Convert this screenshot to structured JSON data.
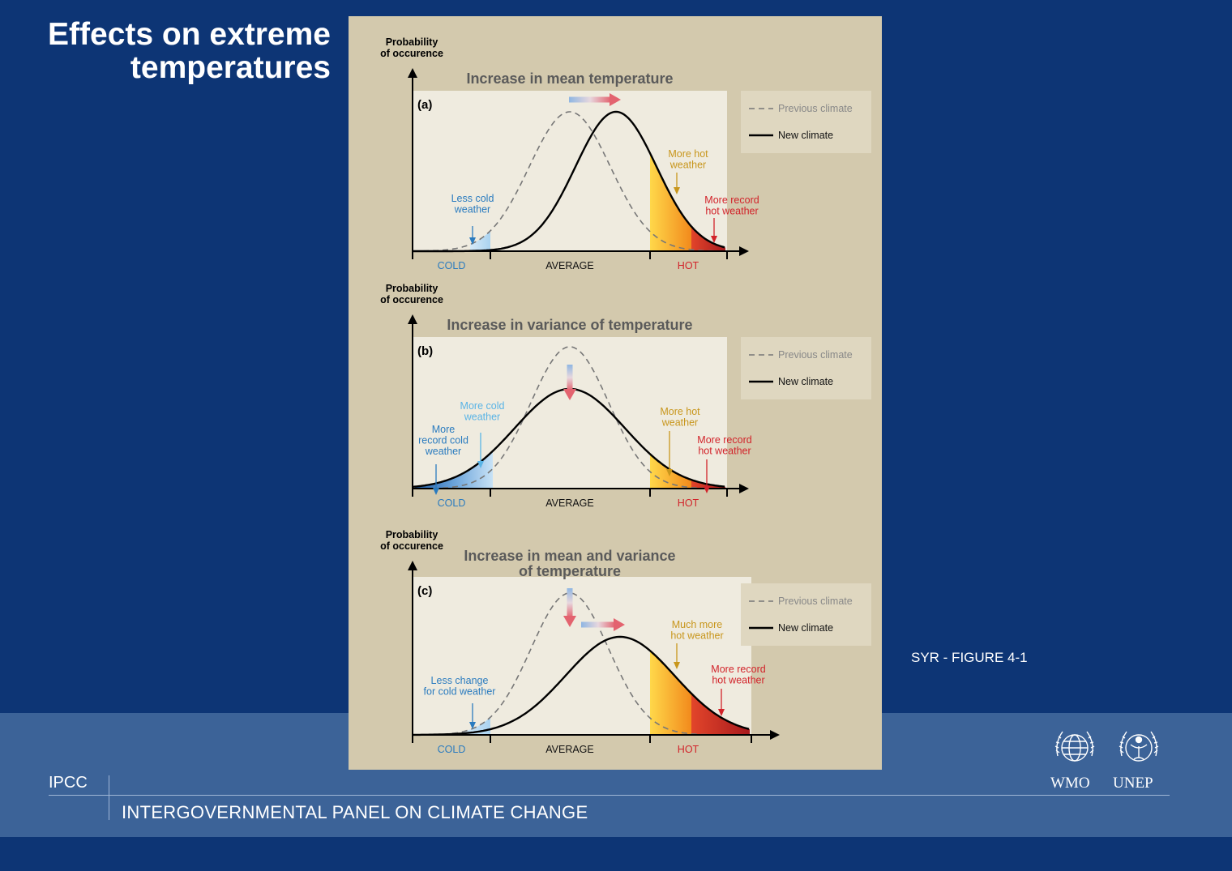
{
  "slide": {
    "title_line1": "Effects on extreme",
    "title_line2": "temperatures",
    "figure_label": "SYR - FIGURE 4-1",
    "footer_acronym": "IPCC",
    "footer_org": "INTERGOVERNMENTAL PANEL ON CLIMATE CHANGE",
    "logo_wmo": "WMO",
    "logo_unep": "UNEP"
  },
  "colors": {
    "background": "#0d3575",
    "band": "#3c6398",
    "figure_bg": "#d3c9ad",
    "plot_bg": "#efebdf",
    "cold_text": "#2a7bbf",
    "hot_text": "#c8961c",
    "record_hot_text": "#d2232a",
    "title_text": "#5a5a5a"
  },
  "legend": {
    "previous": "Previous climate",
    "new": "New climate"
  },
  "axis": {
    "ylabel_line1": "Probability",
    "ylabel_line2": "of occurence",
    "cold": "COLD",
    "average": "AVERAGE",
    "hot": "HOT"
  },
  "panels": [
    {
      "id": "a",
      "label": "(a)",
      "title_lines": [
        "Increase in mean temperature"
      ],
      "annotations": [
        {
          "lines": [
            "Less cold",
            "weather"
          ],
          "kind": "cold"
        },
        {
          "lines": [
            "More hot",
            "weather"
          ],
          "kind": "hot"
        },
        {
          "lines": [
            "More record",
            "hot weather"
          ],
          "kind": "record-hot"
        }
      ]
    },
    {
      "id": "b",
      "label": "(b)",
      "title_lines": [
        "Increase in variance of temperature"
      ],
      "annotations": [
        {
          "lines": [
            "More cold",
            "weather"
          ],
          "kind": "cold-light"
        },
        {
          "lines": [
            "More",
            "record cold",
            "weather"
          ],
          "kind": "cold"
        },
        {
          "lines": [
            "More hot",
            "weather"
          ],
          "kind": "hot"
        },
        {
          "lines": [
            "More record",
            "hot weather"
          ],
          "kind": "record-hot"
        }
      ]
    },
    {
      "id": "c",
      "label": "(c)",
      "title_lines": [
        "Increase in mean and variance",
        "of temperature"
      ],
      "annotations": [
        {
          "lines": [
            "Less change",
            "for cold weather"
          ],
          "kind": "cold"
        },
        {
          "lines": [
            "Much more",
            "hot weather"
          ],
          "kind": "hot"
        },
        {
          "lines": [
            "More record",
            "hot weather"
          ],
          "kind": "record-hot"
        }
      ]
    }
  ]
}
